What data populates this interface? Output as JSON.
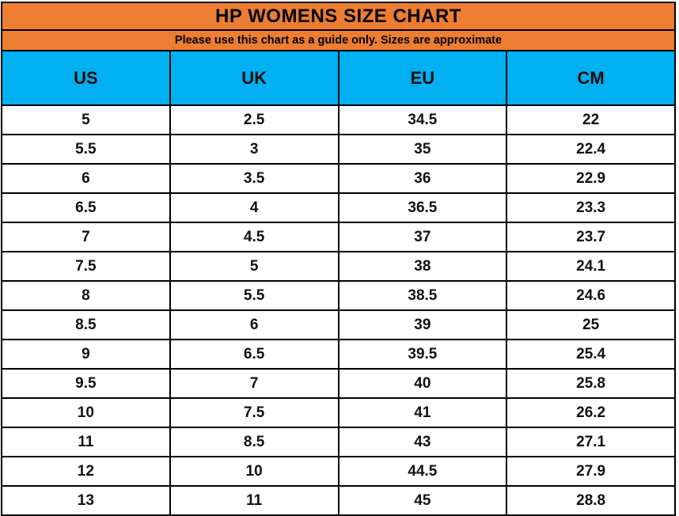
{
  "chart_data": {
    "type": "table",
    "title": "HP WOMENS SIZE CHART",
    "subtitle": "Please use this chart as a guide only. Sizes are approximate",
    "columns": [
      "US",
      "UK",
      "EU",
      "CM"
    ],
    "rows": [
      [
        "5",
        "2.5",
        "34.5",
        "22"
      ],
      [
        "5.5",
        "3",
        "35",
        "22.4"
      ],
      [
        "6",
        "3.5",
        "36",
        "22.9"
      ],
      [
        "6.5",
        "4",
        "36.5",
        "23.3"
      ],
      [
        "7",
        "4.5",
        "37",
        "23.7"
      ],
      [
        "7.5",
        "5",
        "38",
        "24.1"
      ],
      [
        "8",
        "5.5",
        "38.5",
        "24.6"
      ],
      [
        "8.5",
        "6",
        "39",
        "25"
      ],
      [
        "9",
        "6.5",
        "39.5",
        "25.4"
      ],
      [
        "9.5",
        "7",
        "40",
        "25.8"
      ],
      [
        "10",
        "7.5",
        "41",
        "26.2"
      ],
      [
        "11",
        "8.5",
        "43",
        "27.1"
      ],
      [
        "12",
        "10",
        "44.5",
        "27.9"
      ],
      [
        "13",
        "11",
        "45",
        "28.8"
      ]
    ]
  },
  "colors": {
    "title_bg": "#ED7D31",
    "header_bg": "#00B0F0",
    "border": "#000000",
    "row_bg": "#FFFFFF",
    "text": "#000000"
  }
}
